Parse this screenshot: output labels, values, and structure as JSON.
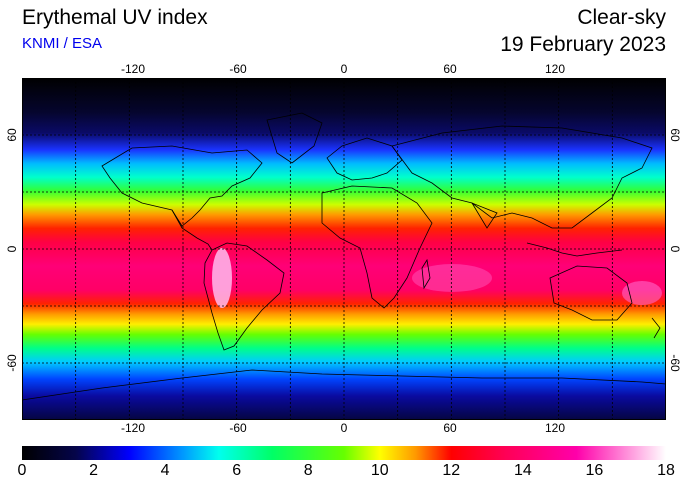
{
  "header": {
    "title": "Erythemal UV index",
    "subtitle": "KNMI / ESA",
    "condition": "Clear-sky",
    "date": "19 February 2023"
  },
  "map": {
    "lon_ticks": [
      "-120",
      "-60",
      "0",
      "60",
      "120"
    ],
    "lat_ticks": [
      "60",
      "0",
      "-60"
    ],
    "lat_range": [
      -90,
      90
    ],
    "lon_range": [
      -180,
      180
    ],
    "grid_lons": [
      -150,
      -120,
      -90,
      -60,
      -30,
      0,
      30,
      60,
      90,
      120,
      150
    ],
    "grid_lats": [
      -60,
      -30,
      0,
      30,
      60
    ]
  },
  "colorbar": {
    "labels": [
      "0",
      "2",
      "4",
      "6",
      "8",
      "10",
      "12",
      "14",
      "16",
      "18"
    ],
    "min": 0,
    "max": 18,
    "stops": [
      {
        "v": 0,
        "c": "#000000"
      },
      {
        "v": 1.5,
        "c": "#05054a"
      },
      {
        "v": 3,
        "c": "#0000ff"
      },
      {
        "v": 4.5,
        "c": "#0099ff"
      },
      {
        "v": 5.5,
        "c": "#00ffee"
      },
      {
        "v": 7,
        "c": "#00ff66"
      },
      {
        "v": 9,
        "c": "#66ff00"
      },
      {
        "v": 10,
        "c": "#ffff00"
      },
      {
        "v": 11,
        "c": "#ff9900"
      },
      {
        "v": 12,
        "c": "#ff0000"
      },
      {
        "v": 13.5,
        "c": "#ff0055"
      },
      {
        "v": 15.5,
        "c": "#ff00aa"
      },
      {
        "v": 17,
        "c": "#ff99dd"
      },
      {
        "v": 18,
        "c": "#ffffff"
      }
    ]
  }
}
